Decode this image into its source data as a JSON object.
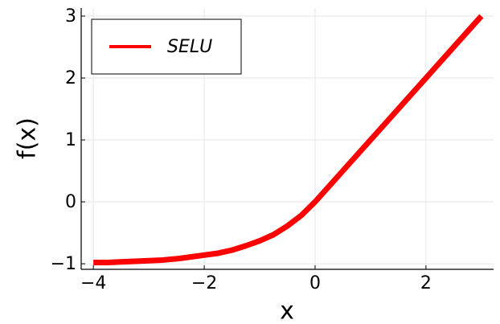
{
  "chart_data": {
    "type": "line",
    "xlabel": "x",
    "ylabel": "f(x)",
    "x": [
      -4,
      -3.75,
      -3.5,
      -3.25,
      -3,
      -2.75,
      -2.5,
      -2.25,
      -2,
      -1.75,
      -1.5,
      -1.25,
      -1,
      -0.75,
      -0.5,
      -0.25,
      0,
      0.5,
      1,
      1.5,
      2,
      2.5,
      3
    ],
    "series": [
      {
        "name": "SELU",
        "color": "#ff0000",
        "values": [
          -0.98,
          -0.98,
          -0.97,
          -0.96,
          -0.95,
          -0.94,
          -0.92,
          -0.89,
          -0.86,
          -0.83,
          -0.78,
          -0.71,
          -0.63,
          -0.53,
          -0.39,
          -0.22,
          0,
          0.5,
          1,
          1.5,
          2,
          2.5,
          3
        ]
      }
    ],
    "xlim": [
      -4.22,
      3.22
    ],
    "xticks": [
      {
        "value": -4,
        "label": "−4"
      },
      {
        "value": -2,
        "label": "−2"
      },
      0,
      2
    ],
    "ylim": [
      -1.09,
      3.13
    ],
    "yticks": [
      {
        "value": -1,
        "label": "−1"
      },
      0,
      1,
      2,
      3
    ],
    "grid": true,
    "legend": "upper left"
  }
}
